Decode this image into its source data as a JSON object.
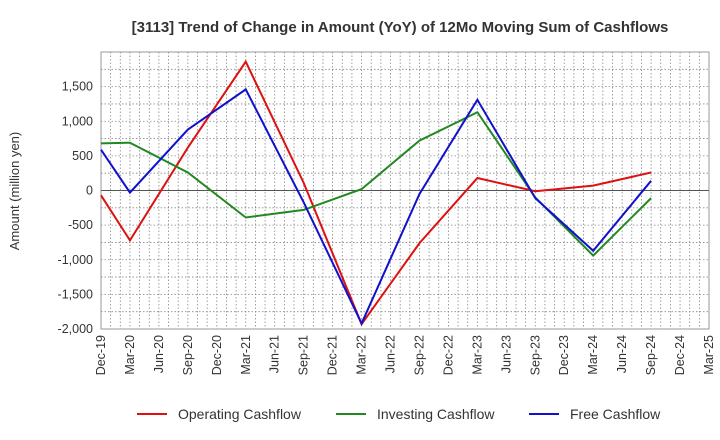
{
  "chart_data": {
    "type": "line",
    "title": "[3113]  Trend of Change in Amount (YoY) of 12Mo Moving Sum of Cashflows",
    "xlabel": "",
    "ylabel": "Amount (million yen)",
    "ylim": [
      -2000,
      2000
    ],
    "yticks": [
      1500,
      1000,
      500,
      0,
      -500,
      -1000,
      -1500,
      -2000
    ],
    "ytick_labels": [
      "1,500",
      "1,000",
      "500",
      "0",
      "-500",
      "-1,000",
      "-1,500",
      "-2,000"
    ],
    "categories": [
      "Dec-19",
      "Mar-20",
      "Jun-20",
      "Sep-20",
      "Dec-20",
      "Mar-21",
      "Jun-21",
      "Sep-21",
      "Dec-21",
      "Mar-22",
      "Jun-22",
      "Sep-22",
      "Dec-22",
      "Mar-23",
      "Jun-23",
      "Sep-23",
      "Dec-23",
      "Mar-24",
      "Jun-24",
      "Sep-24",
      "Dec-24",
      "Mar-25"
    ],
    "grid": true,
    "legend_position": "bottom",
    "series": [
      {
        "name": "Operating Cashflow",
        "color": "#dd1111",
        "values": [
          -70,
          -720,
          null,
          620,
          null,
          1860,
          null,
          110,
          null,
          -1930,
          null,
          -760,
          null,
          180,
          null,
          -10,
          null,
          70,
          null,
          260,
          null,
          null
        ]
      },
      {
        "name": "Investing Cashflow",
        "color": "#228822",
        "values": [
          680,
          690,
          null,
          260,
          null,
          -390,
          null,
          -280,
          null,
          20,
          null,
          720,
          null,
          1130,
          null,
          -100,
          null,
          -940,
          null,
          -110,
          null,
          null
        ]
      },
      {
        "name": "Free Cashflow",
        "color": "#1111cc",
        "values": [
          590,
          -30,
          null,
          880,
          null,
          1460,
          null,
          -170,
          null,
          -1920,
          null,
          -50,
          null,
          1310,
          null,
          -110,
          null,
          -870,
          null,
          140,
          null,
          null
        ]
      }
    ]
  }
}
